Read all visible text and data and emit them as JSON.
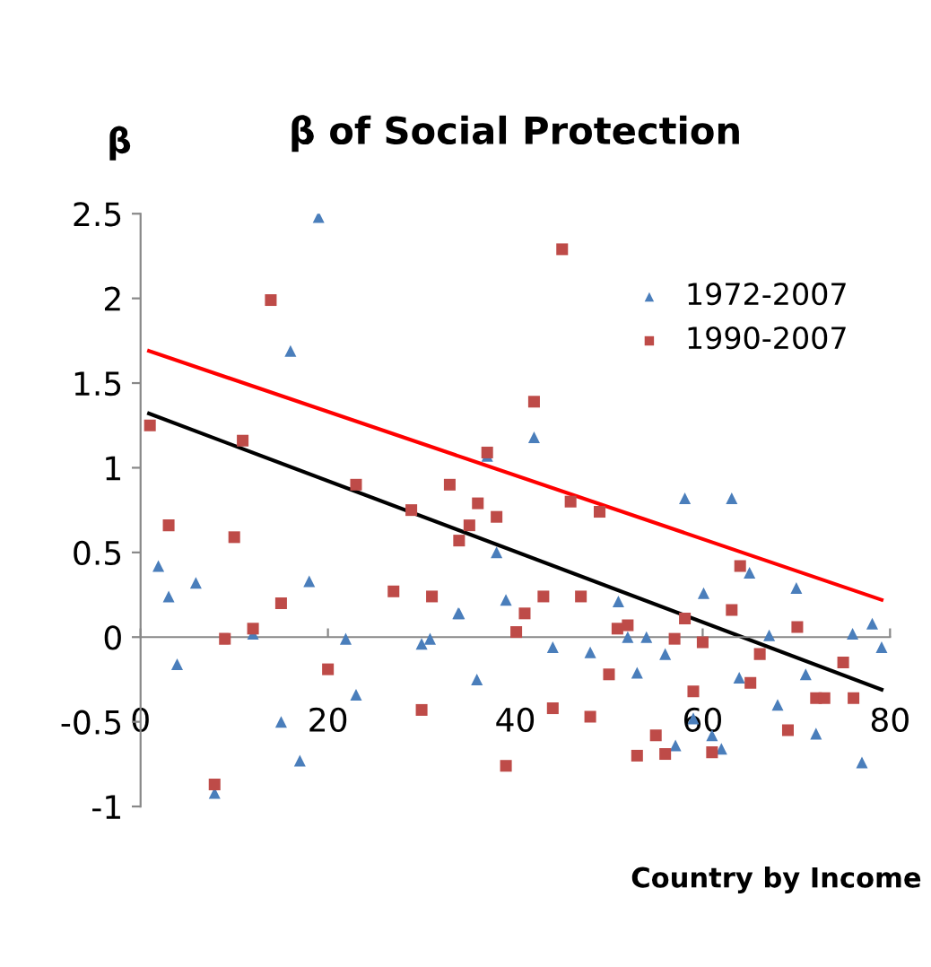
{
  "chart_data": {
    "type": "scatter",
    "title": "β of Social Protection",
    "ylabel": "β",
    "xlabel": "Country by Income",
    "xlim": [
      0,
      80
    ],
    "xticks": [
      0,
      20,
      40,
      60,
      80
    ],
    "ylim": [
      -1,
      2.5
    ],
    "yticks": [
      -1,
      -0.5,
      0,
      0.5,
      1,
      1.5,
      2,
      2.5
    ],
    "grid": false,
    "legend": "top right",
    "series": [
      {
        "name": "1972-2007",
        "color": "#4a7ebb",
        "marker": "triangle",
        "x": [
          1.9,
          3.0,
          3.9,
          5.9,
          7.9,
          12.0,
          15.0,
          16.0,
          17.0,
          18.0,
          19.0,
          21.9,
          23.0,
          30.0,
          30.9,
          33.9,
          34.0,
          35.1,
          35.9,
          37.0,
          38.0,
          39.0,
          42.0,
          44.0,
          48.0,
          51.0,
          52.0,
          53.0,
          54.0,
          56.0,
          57.1,
          58.1,
          59.0,
          60.1,
          61.0,
          62.0,
          63.1,
          63.9,
          65.0,
          67.1,
          68.0,
          70.0,
          71.0,
          72.1,
          76.0,
          77.0,
          78.1,
          79.1
        ],
        "values": [
          0.42,
          0.24,
          -0.16,
          0.32,
          -0.92,
          0.02,
          -0.5,
          1.69,
          -0.73,
          0.33,
          2.48,
          -0.01,
          -0.34,
          -0.04,
          -0.01,
          0.14,
          0.14,
          null,
          -0.25,
          1.07,
          0.5,
          0.22,
          1.18,
          -0.06,
          -0.09,
          0.21,
          0,
          -0.21,
          0,
          -0.1,
          -0.64,
          0.82,
          -0.48,
          0.26,
          -0.58,
          -0.66,
          0.82,
          -0.24,
          0.38,
          0.01,
          -0.4,
          0.29,
          -0.22,
          -0.57,
          0.02,
          -0.74,
          0.08,
          -0.06
        ]
      },
      {
        "name": "1990-2007",
        "color": "#be4b48",
        "marker": "square",
        "x": [
          1.0,
          3.0,
          7.9,
          9.0,
          10.0,
          10.9,
          12.0,
          13.9,
          15.0,
          20.0,
          23.0,
          27.0,
          28.9,
          30.0,
          31.1,
          33.0,
          34.0,
          35.1,
          36.0,
          37.0,
          38.0,
          39.0,
          40.1,
          41.0,
          42.0,
          43.0,
          44.0,
          45.0,
          45.9,
          47.0,
          48.0,
          49.0,
          50.0,
          50.9,
          52.0,
          53.0,
          55.0,
          56.0,
          57.0,
          58.1,
          59.0,
          60.0,
          61.0,
          63.1,
          64.0,
          65.1,
          66.1,
          69.1,
          70.1,
          72.1,
          73.0,
          75.0,
          76.1
        ],
        "values": [
          1.25,
          0.66,
          -0.87,
          -0.01,
          0.59,
          1.16,
          0.05,
          1.99,
          0.2,
          -0.19,
          0.9,
          0.27,
          0.75,
          -0.43,
          0.24,
          0.9,
          0.57,
          0.66,
          0.79,
          1.09,
          0.71,
          -0.76,
          0.03,
          0.14,
          1.39,
          0.24,
          -0.42,
          2.29,
          0.8,
          0.24,
          -0.47,
          0.74,
          -0.22,
          0.05,
          0.07,
          -0.7,
          -0.58,
          -0.69,
          -0.01,
          0.11,
          -0.32,
          -0.03,
          -0.68,
          0.16,
          0.42,
          -0.27,
          -0.1,
          -0.55,
          0.06,
          -0.36,
          -0.36,
          -0.15,
          -0.36
        ]
      },
      {
        "type": "line",
        "color": "#000000",
        "marker": "none",
        "x": [
          0.9,
          79.1
        ],
        "values": [
          1.32,
          -0.31
        ]
      },
      {
        "type": "line",
        "color": "#ff0000",
        "marker": "none",
        "x": [
          0.9,
          79.1
        ],
        "values": [
          1.69,
          0.22
        ]
      }
    ]
  }
}
